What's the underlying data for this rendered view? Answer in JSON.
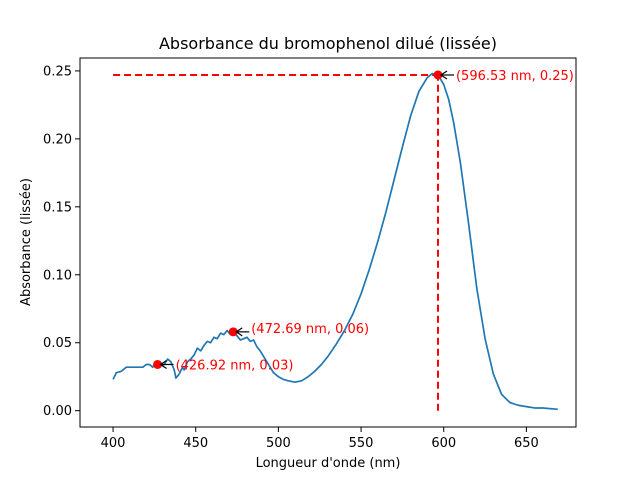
{
  "chart_data": {
    "type": "line",
    "title": "Absorbance du bromophenol dilué (lissée)",
    "xlabel": "Longueur d'onde (nm)",
    "ylabel": "Absorbance (lissée)",
    "xlim": [
      380,
      680
    ],
    "ylim": [
      -0.012,
      0.2595
    ],
    "xticks": [
      400,
      450,
      500,
      550,
      600,
      650
    ],
    "yticks": [
      0.0,
      0.05,
      0.1,
      0.15,
      0.2,
      0.25
    ],
    "xtick_labels": [
      "400",
      "450",
      "500",
      "550",
      "600",
      "650"
    ],
    "ytick_labels": [
      "0.00",
      "0.05",
      "0.10",
      "0.15",
      "0.20",
      "0.25"
    ],
    "grid": false,
    "line_color": "#1f77b4",
    "marker_color": "#ff0000",
    "annotation_color": "#ff0000",
    "series": [
      {
        "x": [
          400,
          402,
          405,
          408,
          410,
          412,
          415,
          418,
          420,
          422,
          424,
          425,
          427,
          429,
          431,
          433,
          435,
          437,
          438,
          440,
          442,
          443,
          445,
          447,
          449,
          451,
          453,
          455,
          457,
          459,
          461,
          463,
          465,
          467,
          469,
          471,
          473,
          475,
          477,
          479,
          481,
          483,
          485,
          487,
          489,
          491,
          493,
          495,
          497,
          500,
          503,
          506,
          510,
          514,
          518,
          522,
          526,
          530,
          535,
          540,
          545,
          550,
          555,
          560,
          565,
          570,
          575,
          580,
          585,
          590,
          593,
          596.53,
          600,
          603,
          606,
          610,
          615,
          620,
          625,
          630,
          635,
          640,
          645,
          650,
          655,
          660,
          669
        ],
        "y": [
          0.023,
          0.028,
          0.029,
          0.032,
          0.032,
          0.032,
          0.032,
          0.032,
          0.034,
          0.034,
          0.032,
          0.034,
          0.034,
          0.033,
          0.034,
          0.038,
          0.036,
          0.03,
          0.024,
          0.027,
          0.032,
          0.03,
          0.036,
          0.038,
          0.041,
          0.046,
          0.044,
          0.048,
          0.051,
          0.05,
          0.054,
          0.053,
          0.057,
          0.056,
          0.059,
          0.056,
          0.058,
          0.055,
          0.052,
          0.053,
          0.054,
          0.051,
          0.052,
          0.047,
          0.044,
          0.04,
          0.036,
          0.032,
          0.028,
          0.025,
          0.023,
          0.022,
          0.021,
          0.022,
          0.025,
          0.029,
          0.034,
          0.04,
          0.049,
          0.059,
          0.071,
          0.086,
          0.104,
          0.124,
          0.146,
          0.17,
          0.194,
          0.217,
          0.235,
          0.245,
          0.248,
          0.247,
          0.24,
          0.229,
          0.212,
          0.183,
          0.138,
          0.09,
          0.053,
          0.027,
          0.012,
          0.006,
          0.004,
          0.003,
          0.002,
          0.002,
          0.001
        ]
      }
    ],
    "points": [
      {
        "x": 426.92,
        "y": 0.034,
        "label": "(426.92 nm, 0.03)"
      },
      {
        "x": 472.69,
        "y": 0.058,
        "label": "(472.69 nm, 0.06)"
      },
      {
        "x": 596.53,
        "y": 0.247,
        "label": "(596.53 nm, 0.25)"
      }
    ],
    "guide_lines": {
      "horizontal": {
        "y": 0.247,
        "x_from": 400,
        "x_to": 596.53
      },
      "vertical": {
        "x": 596.53,
        "y_from": 0.0,
        "y_to": 0.247
      },
      "style": "dashed",
      "color": "#ff0000"
    }
  }
}
